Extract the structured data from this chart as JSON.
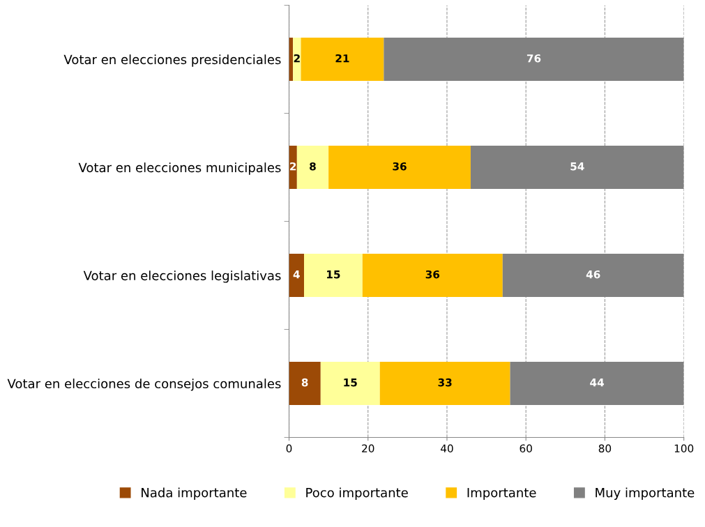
{
  "chart_data": {
    "type": "bar",
    "orientation": "horizontal",
    "stacked": true,
    "categories": [
      "Votar en elecciones presidenciales",
      "Votar en elecciones municipales",
      "Votar en elecciones legislativas",
      "Votar en elecciones de consejos comunales"
    ],
    "series": [
      {
        "name": "Nada importante",
        "color": "#9c4a06",
        "values": [
          1,
          2,
          3.8,
          8
        ],
        "value_labels": [
          null,
          "2",
          "4",
          "8"
        ]
      },
      {
        "name": "Poco importante",
        "color": "#ffff99",
        "values": [
          2,
          8,
          14.8,
          15
        ],
        "value_labels": [
          "2",
          "8",
          "15",
          "15"
        ]
      },
      {
        "name": "Importante",
        "color": "#ffc000",
        "values": [
          21,
          36,
          35.5,
          33
        ],
        "value_labels": [
          "21",
          "36",
          "36",
          "33"
        ]
      },
      {
        "name": "Muy importante",
        "color": "#808080",
        "values": [
          76,
          54,
          45.9,
          44
        ],
        "value_labels": [
          "76",
          "54",
          "46",
          "44"
        ]
      }
    ],
    "xlim": [
      0,
      100
    ],
    "xticks": [
      0,
      20,
      40,
      60,
      80,
      100
    ],
    "grid": "x",
    "legend": "bottom"
  }
}
